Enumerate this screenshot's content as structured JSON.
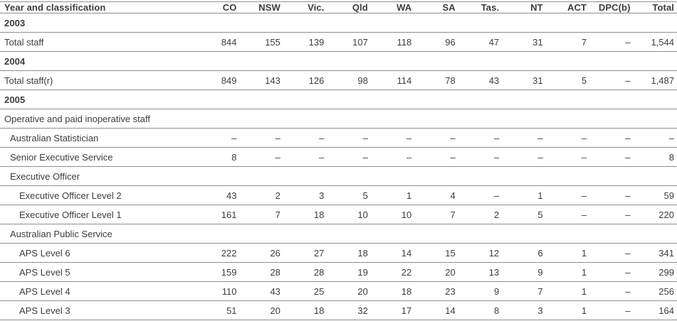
{
  "colors": {
    "text": "#3d3d3d",
    "border": "#8f8f8f",
    "background": "#ffffff"
  },
  "chart_data": {
    "type": "table",
    "columns": [
      "Year and classification",
      "CO",
      "NSW",
      "Vic.",
      "Qld",
      "WA",
      "SA",
      "Tas.",
      "NT",
      "ACT",
      "DPC(b)",
      "Total"
    ],
    "null_symbol": "–",
    "rows": [
      {
        "label": "2003",
        "type": "year",
        "indent": 0,
        "values": []
      },
      {
        "label": "Total staff",
        "type": "data",
        "indent": 0,
        "values": [
          "844",
          "155",
          "139",
          "107",
          "118",
          "96",
          "47",
          "31",
          "7",
          "–",
          "1,544"
        ]
      },
      {
        "label": "2004",
        "type": "year",
        "indent": 0,
        "values": []
      },
      {
        "label": "Total staff(r)",
        "type": "data",
        "indent": 0,
        "values": [
          "849",
          "143",
          "126",
          "98",
          "114",
          "78",
          "43",
          "31",
          "5",
          "–",
          "1,487"
        ]
      },
      {
        "label": "2005",
        "type": "year",
        "indent": 0,
        "values": []
      },
      {
        "label": "Operative and paid inoperative staff",
        "type": "group",
        "indent": 0,
        "values": []
      },
      {
        "label": "Australian Statistician",
        "type": "data",
        "indent": 1,
        "values": [
          "–",
          "–",
          "–",
          "–",
          "–",
          "–",
          "–",
          "–",
          "–",
          "–",
          "–"
        ]
      },
      {
        "label": "Senior Executive Service",
        "type": "data",
        "indent": 1,
        "values": [
          "8",
          "–",
          "–",
          "–",
          "–",
          "–",
          "–",
          "–",
          "–",
          "–",
          "8"
        ]
      },
      {
        "label": "Executive Officer",
        "type": "group",
        "indent": 1,
        "values": []
      },
      {
        "label": "Executive Officer Level 2",
        "type": "data",
        "indent": 2,
        "values": [
          "43",
          "2",
          "3",
          "5",
          "1",
          "4",
          "–",
          "1",
          "–",
          "–",
          "59"
        ]
      },
      {
        "label": "Executive Officer Level 1",
        "type": "data",
        "indent": 2,
        "values": [
          "161",
          "7",
          "18",
          "10",
          "10",
          "7",
          "2",
          "5",
          "–",
          "–",
          "220"
        ]
      },
      {
        "label": "Australian Public Service",
        "type": "group",
        "indent": 1,
        "values": []
      },
      {
        "label": "APS Level 6",
        "type": "data",
        "indent": 2,
        "values": [
          "222",
          "26",
          "27",
          "18",
          "14",
          "15",
          "12",
          "6",
          "1",
          "–",
          "341"
        ]
      },
      {
        "label": "APS Level 5",
        "type": "data",
        "indent": 2,
        "values": [
          "159",
          "28",
          "28",
          "19",
          "22",
          "20",
          "13",
          "9",
          "1",
          "–",
          "299"
        ]
      },
      {
        "label": "APS Level 4",
        "type": "data",
        "indent": 2,
        "values": [
          "110",
          "43",
          "25",
          "20",
          "18",
          "23",
          "9",
          "7",
          "1",
          "–",
          "256"
        ]
      },
      {
        "label": "APS Level 3",
        "type": "data",
        "indent": 2,
        "values": [
          "51",
          "20",
          "18",
          "32",
          "17",
          "14",
          "8",
          "3",
          "1",
          "–",
          "164"
        ]
      }
    ]
  }
}
